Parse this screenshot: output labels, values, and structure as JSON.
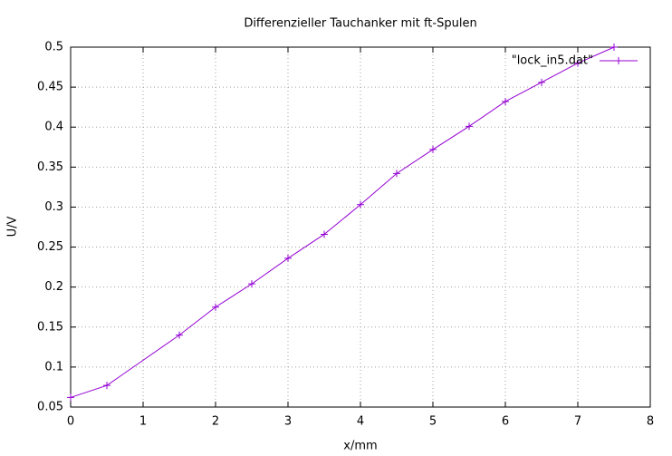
{
  "chart_data": {
    "type": "line",
    "title": "Differenzieller Tauchanker mit ft-Spulen",
    "x_label": "x/mm",
    "y_label": "U/V",
    "x": [
      0,
      0.5,
      1.5,
      2,
      2.5,
      3,
      3.5,
      4,
      4.5,
      5,
      5.5,
      6,
      6.5,
      7,
      7.5
    ],
    "series": [
      {
        "name": "\"lock_in5.dat\"",
        "color": "#9400d3",
        "values": [
          0.062,
          0.077,
          0.14,
          0.175,
          0.204,
          0.236,
          0.266,
          0.303,
          0.342,
          0.372,
          0.401,
          0.432,
          0.456,
          0.48,
          0.5
        ]
      }
    ],
    "xlim": [
      0,
      8
    ],
    "xticks": [
      0,
      1,
      2,
      3,
      4,
      5,
      6,
      7,
      8
    ],
    "ylim": [
      0.05,
      0.5
    ],
    "yticks": [
      0.05,
      0.1,
      0.15,
      0.2,
      0.25,
      0.3,
      0.35,
      0.4,
      0.45,
      0.5
    ],
    "grid": true,
    "legend": "top-right"
  }
}
